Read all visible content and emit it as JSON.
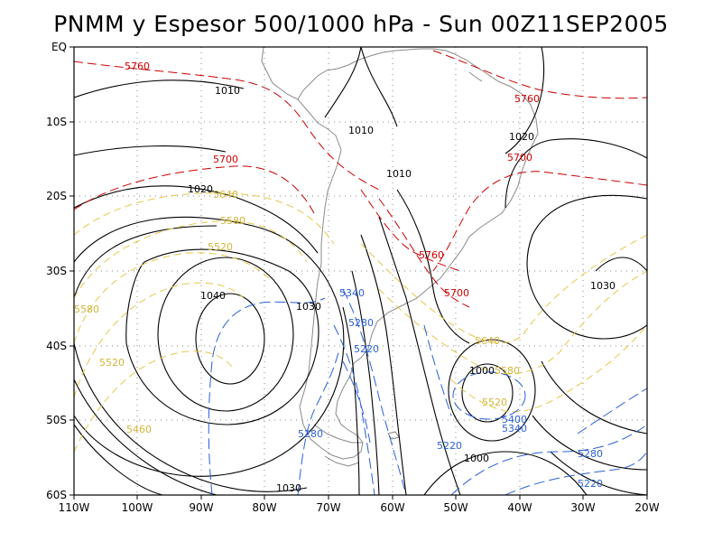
{
  "title": "PNMM y Espesor 500/1000 hPa - Sun 00Z11SEP2005",
  "lat_ticks": [
    "EQ",
    "10S",
    "20S",
    "30S",
    "40S",
    "50S",
    "60S"
  ],
  "lon_ticks": [
    "110W",
    "100W",
    "90W",
    "80W",
    "70W",
    "60W",
    "50W",
    "40W",
    "30W",
    "20W"
  ],
  "colors": {
    "isobar": "#000000",
    "thickness_5760_5700": "#cc0000",
    "thickness_5640_5520": "#e6c84a",
    "thickness_5340_5220": "#2b5fd9",
    "coast": "#8a8a8a"
  },
  "contour_labels": {
    "isobars": [
      "1010",
      "1010",
      "1010",
      "1020",
      "1020",
      "1030",
      "1040",
      "1030",
      "1000",
      "1000",
      "1030"
    ],
    "thickness_red": [
      "5760",
      "5760",
      "5700",
      "5700",
      "5760",
      "5700"
    ],
    "thickness_yellow": [
      "5640",
      "5580",
      "5520",
      "5580",
      "5520",
      "5460",
      "5640",
      "5580",
      "5520"
    ],
    "thickness_blue": [
      "5340",
      "5280",
      "5220",
      "5280",
      "5220",
      "5400",
      "5340",
      "5280",
      "5220"
    ]
  }
}
